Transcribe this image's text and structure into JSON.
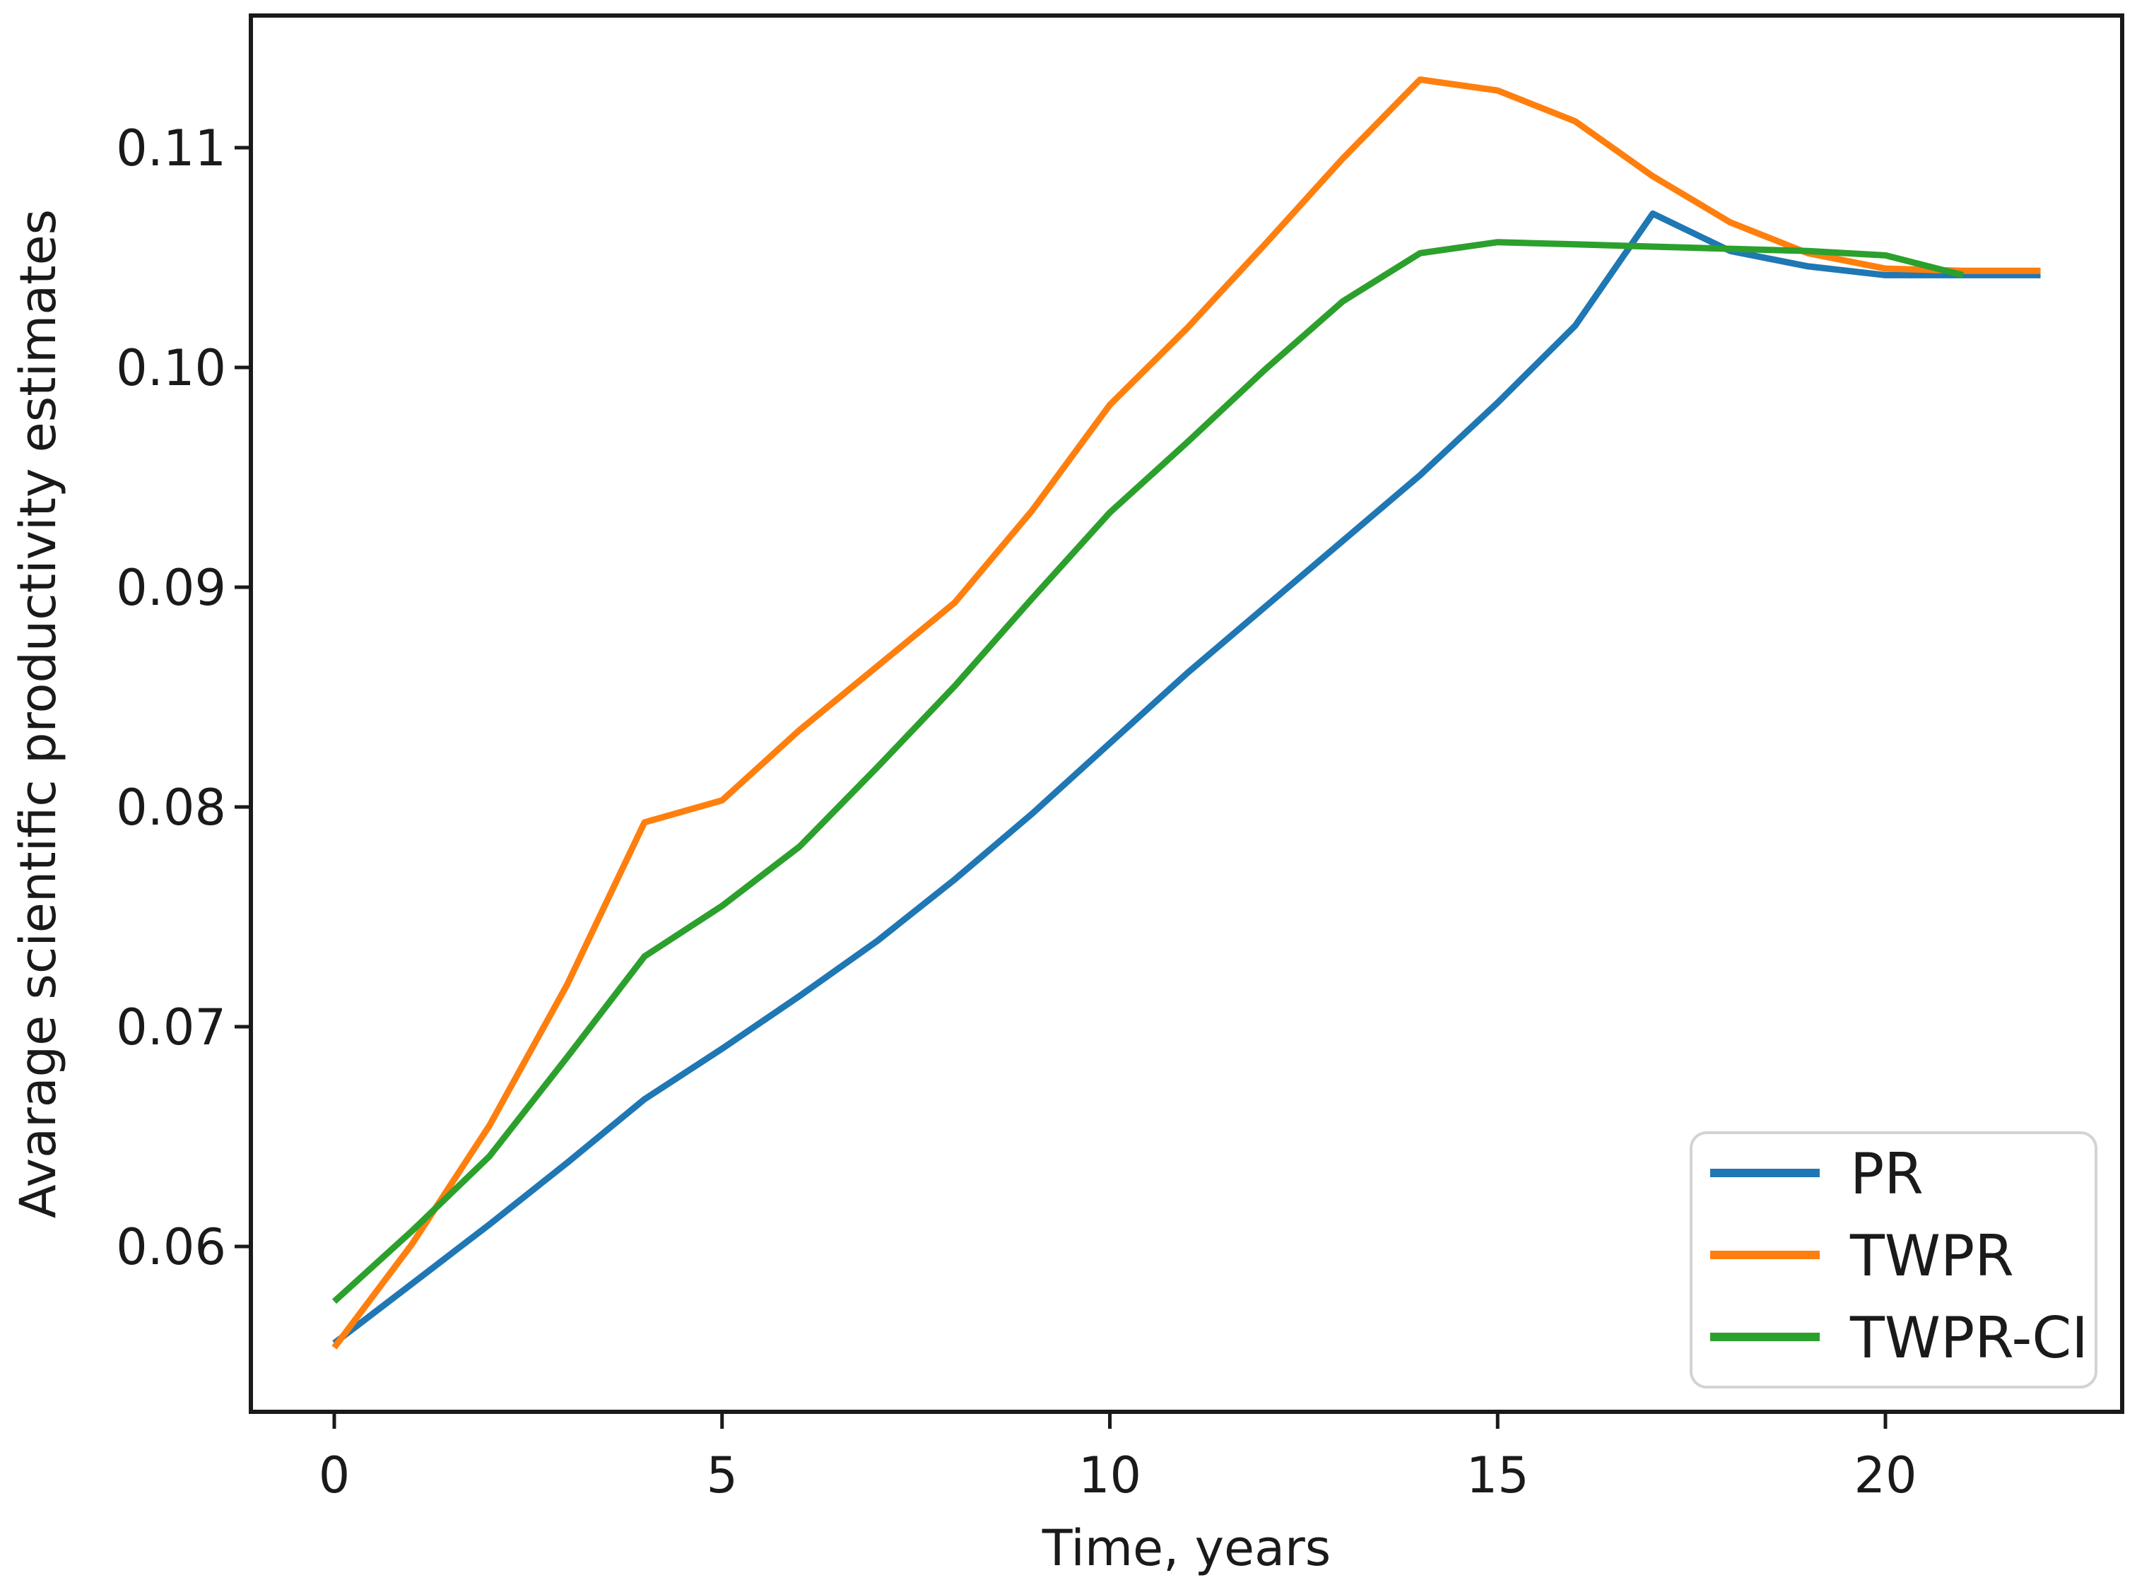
{
  "figure": {
    "background": "#ffffff",
    "spine_color": "#1a1a1a",
    "tick_color": "#1a1a1a",
    "text_color": "#1a1a1a",
    "legend_border_color": "#d3d3d3",
    "legend_background": "#ffffff"
  },
  "chart_data": {
    "type": "line",
    "title": "",
    "xlabel": "Time, years",
    "ylabel": "Avarage scientific productivity estimates",
    "xlim": [
      -1.1,
      23.1
    ],
    "ylim": [
      0.0525,
      0.116
    ],
    "grid": false,
    "legend_position": "lower right",
    "x_ticks": {
      "values": [
        0,
        5,
        10,
        15,
        20
      ],
      "labels": [
        "0",
        "5",
        "10",
        "15",
        "20"
      ]
    },
    "y_ticks": {
      "values": [
        0.06,
        0.07,
        0.08,
        0.09,
        0.1,
        0.11
      ],
      "labels": [
        "0.06",
        "0.07",
        "0.08",
        "0.09",
        "0.10",
        "0.11"
      ]
    },
    "series": [
      {
        "name": "PR",
        "color": "#1f77b4",
        "x": [
          0,
          1,
          2,
          3,
          4,
          5,
          6,
          7,
          8,
          9,
          10,
          11,
          12,
          13,
          14,
          15,
          16,
          17,
          18,
          19,
          20,
          21,
          22
        ],
        "values": [
          0.0556,
          0.0583,
          0.061,
          0.0638,
          0.0667,
          0.069,
          0.0714,
          0.0739,
          0.0767,
          0.0797,
          0.0829,
          0.0861,
          0.0891,
          0.0921,
          0.0951,
          0.0984,
          0.1019,
          0.107,
          0.1053,
          0.1046,
          0.1042,
          0.1042,
          0.1042
        ]
      },
      {
        "name": "TWPR",
        "color": "#ff7f0e",
        "x": [
          0,
          1,
          2,
          3,
          4,
          5,
          6,
          7,
          8,
          9,
          10,
          11,
          12,
          13,
          14,
          15,
          16,
          17,
          18,
          19,
          20,
          21,
          22
        ],
        "values": [
          0.0554,
          0.0601,
          0.0655,
          0.0719,
          0.0793,
          0.0803,
          0.0835,
          0.0864,
          0.0893,
          0.0935,
          0.0983,
          0.1018,
          0.1056,
          0.1095,
          0.1131,
          0.1126,
          0.1112,
          0.1087,
          0.1066,
          0.1052,
          0.1045,
          0.1044,
          0.1044
        ]
      },
      {
        "name": "TWPR-CI",
        "color": "#2ca02c",
        "x": [
          0,
          1,
          2,
          3,
          4,
          5,
          6,
          7,
          8,
          9,
          10,
          11,
          12,
          13,
          14,
          15,
          16,
          17,
          18,
          19,
          20,
          21
        ],
        "values": [
          0.0575,
          0.0607,
          0.0641,
          0.0686,
          0.0732,
          0.0755,
          0.0782,
          0.0818,
          0.0855,
          0.0895,
          0.0934,
          0.0966,
          0.0999,
          0.103,
          0.1052,
          0.1057,
          0.1056,
          0.1055,
          0.1054,
          0.1053,
          0.1051,
          0.1042
        ]
      }
    ]
  }
}
